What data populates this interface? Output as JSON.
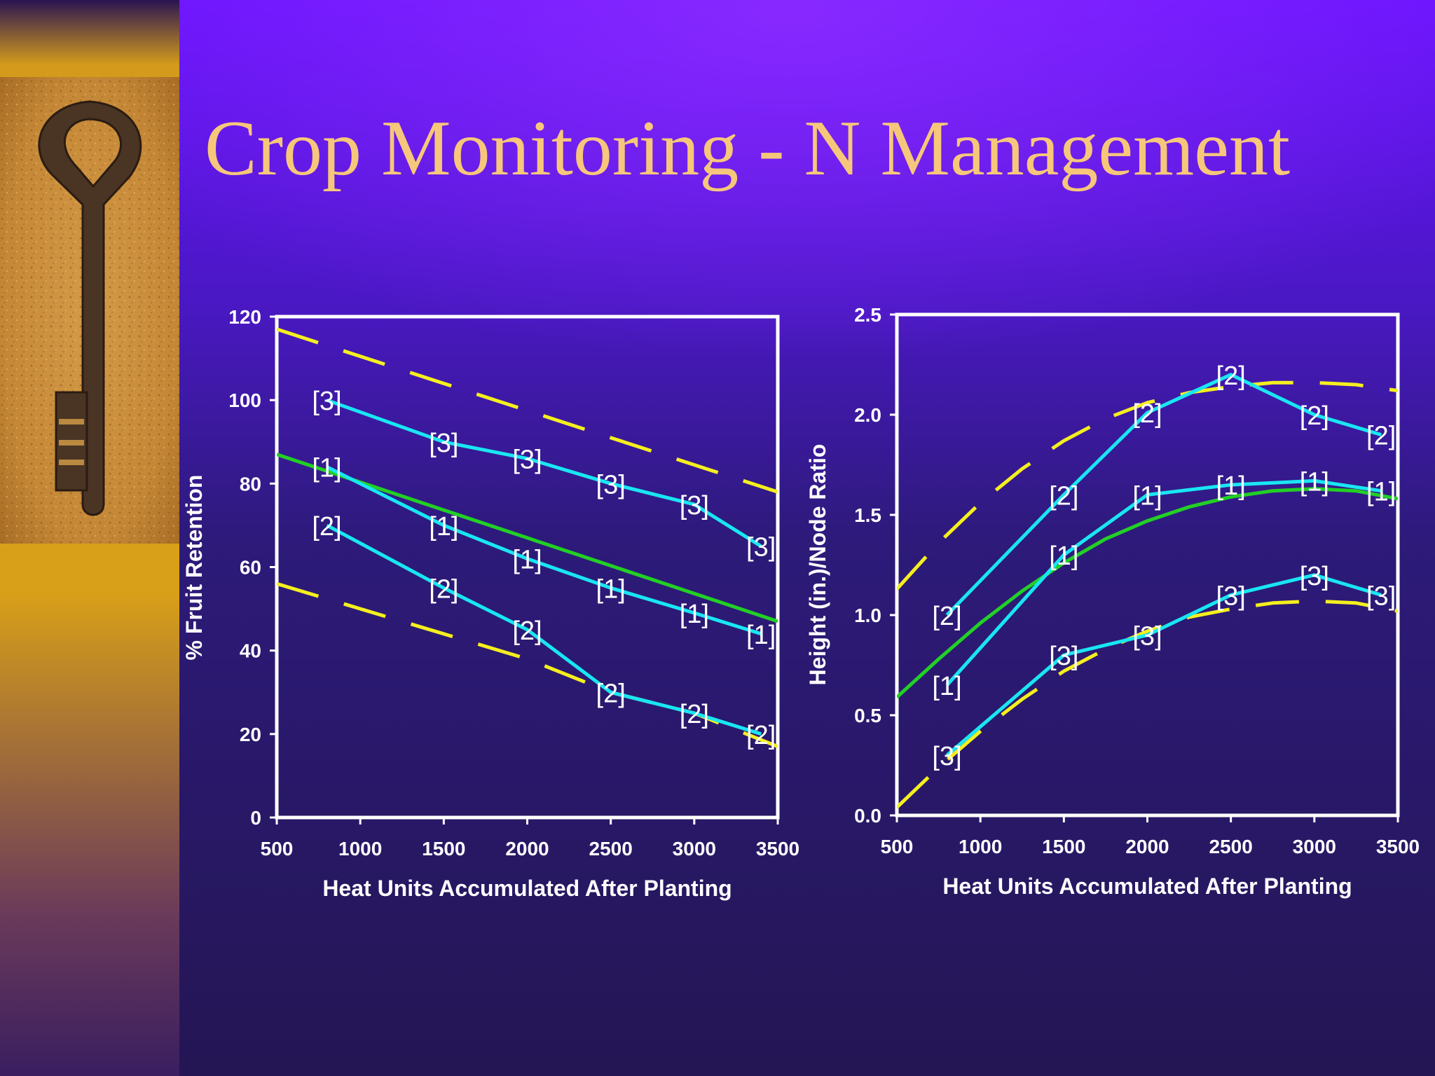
{
  "slide": {
    "title": "Crop Monitoring -  N Management",
    "picture": "skeleton-key-on-soil",
    "colors": {
      "title": "#f6c77a",
      "background": "#2b1a6e",
      "observed": "#19e6f2",
      "average": "#22d026",
      "limit": "#f5ef1e",
      "frame": "#ffffff"
    }
  },
  "chart_data": [
    {
      "type": "line",
      "xlabel": "Heat Units Accumulated After Planting",
      "ylabel": "% Fruit Retention",
      "xlim": [
        500,
        3500
      ],
      "ylim": [
        0,
        120
      ],
      "xticks": [
        500,
        1000,
        1500,
        2000,
        2500,
        3000,
        3500
      ],
      "yticks": [
        0,
        20,
        40,
        60,
        80,
        100,
        120
      ],
      "ytick_labels": [
        "0",
        "20",
        "40",
        "60",
        "80",
        "100",
        "120"
      ],
      "grid": false,
      "series": [
        {
          "name": "[3]",
          "style": "solid",
          "color": "#19e6f2",
          "x": [
            800,
            1500,
            2000,
            2500,
            3000,
            3400
          ],
          "y": [
            100,
            90,
            86,
            80,
            75,
            65
          ]
        },
        {
          "name": "[1]",
          "style": "solid",
          "color": "#19e6f2",
          "x": [
            800,
            1500,
            2000,
            2500,
            3000,
            3400
          ],
          "y": [
            84,
            70,
            62,
            55,
            49,
            44
          ]
        },
        {
          "name": "[2]",
          "style": "solid",
          "color": "#19e6f2",
          "x": [
            800,
            1500,
            2000,
            2500,
            3000,
            3400
          ],
          "y": [
            70,
            55,
            45,
            30,
            25,
            20
          ]
        },
        {
          "style": "solid",
          "color": "#22d026",
          "x": [
            500,
            3500
          ],
          "y": [
            87,
            47
          ]
        },
        {
          "style": "dashed",
          "color": "#f5ef1e",
          "x": [
            500,
            3500
          ],
          "y": [
            117,
            78
          ]
        },
        {
          "style": "dashed",
          "color": "#f5ef1e",
          "x": [
            500,
            2000,
            2500,
            3000,
            3500
          ],
          "y": [
            56,
            38,
            30,
            25,
            17
          ]
        }
      ]
    },
    {
      "type": "line",
      "xlabel": "Heat Units Accumulated After Planting",
      "ylabel": "Height (in.)/Node Ratio",
      "xlim": [
        500,
        3500
      ],
      "ylim": [
        0,
        2.5
      ],
      "xticks": [
        500,
        1000,
        1500,
        2000,
        2500,
        3000,
        3500
      ],
      "yticks": [
        0,
        0.5,
        1,
        1.5,
        2,
        2.5
      ],
      "ytick_labels": [
        "0.0",
        "0.5",
        "1.0",
        "1.5",
        "2.0",
        "2.5"
      ],
      "grid": false,
      "series": [
        {
          "name": "[2]",
          "style": "solid",
          "color": "#19e6f2",
          "x": [
            800,
            1500,
            2000,
            2500,
            3000,
            3400
          ],
          "y": [
            1.0,
            1.6,
            2.01,
            2.2,
            2.0,
            1.9
          ]
        },
        {
          "name": "[1]",
          "style": "solid",
          "color": "#19e6f2",
          "x": [
            800,
            1500,
            2000,
            2500,
            3000,
            3400
          ],
          "y": [
            0.65,
            1.3,
            1.6,
            1.65,
            1.67,
            1.62
          ]
        },
        {
          "name": "[3]",
          "style": "solid",
          "color": "#19e6f2",
          "x": [
            800,
            1500,
            2000,
            2500,
            3000,
            3400
          ],
          "y": [
            0.3,
            0.8,
            0.9,
            1.1,
            1.2,
            1.1
          ]
        },
        {
          "style": "solid",
          "color": "#22d026",
          "x": [
            500,
            750,
            1000,
            1250,
            1500,
            1750,
            2000,
            2250,
            2500,
            2750,
            3000,
            3250,
            3500
          ],
          "y": [
            0.59,
            0.78,
            0.96,
            1.12,
            1.26,
            1.38,
            1.47,
            1.54,
            1.59,
            1.62,
            1.63,
            1.62,
            1.58
          ]
        },
        {
          "style": "dashed",
          "color": "#f5ef1e",
          "x": [
            500,
            750,
            1000,
            1250,
            1500,
            1750,
            2000,
            2250,
            2500,
            2750,
            3000,
            3250,
            3500
          ],
          "y": [
            1.13,
            1.36,
            1.56,
            1.73,
            1.87,
            1.98,
            2.06,
            2.11,
            2.14,
            2.16,
            2.16,
            2.15,
            2.12
          ]
        },
        {
          "style": "dashed",
          "color": "#f5ef1e",
          "x": [
            500,
            750,
            1000,
            1250,
            1500,
            1750,
            2000,
            2250,
            2500,
            2750,
            3000,
            3250,
            3500
          ],
          "y": [
            0.04,
            0.24,
            0.42,
            0.58,
            0.72,
            0.83,
            0.92,
            0.99,
            1.03,
            1.06,
            1.07,
            1.06,
            1.02
          ]
        }
      ]
    }
  ]
}
